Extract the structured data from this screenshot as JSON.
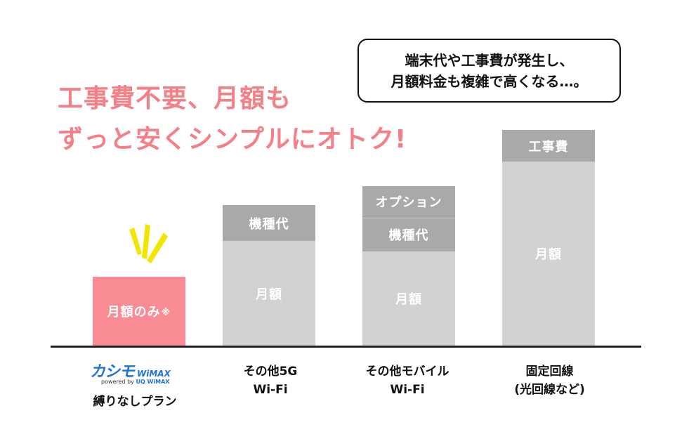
{
  "headline": {
    "line1": "工事費不要、月額も",
    "line2": "ずっと安くシンプルにオトク!"
  },
  "callout": {
    "line1": "端末代や工事費が発生し、",
    "line2": "月額料金も複雑で高くなる…。"
  },
  "colors": {
    "headline": "#f47f86",
    "highlight_bar": "#f88b93",
    "monthly_segment": "#d2d2d2",
    "extra_segment": "#a9a9a9",
    "burst": "#f2e600"
  },
  "chart_data": {
    "type": "bar",
    "stacked": true,
    "categories": [
      "カシモ WiMAX 縛りなしプラン",
      "その他5G Wi-Fi",
      "その他モバイル Wi-Fi",
      "固定回線 (光回線など)"
    ],
    "bars": [
      {
        "segments": [
          {
            "label": "月額のみ",
            "note": "※",
            "fraction": 0.32,
            "color": "#f88b93"
          }
        ]
      },
      {
        "segments": [
          {
            "label": "機種代",
            "fraction": 0.165,
            "color": "#a9a9a9"
          },
          {
            "label": "月額",
            "fraction": 0.485,
            "color": "#d2d2d2"
          }
        ]
      },
      {
        "segments": [
          {
            "label": "オプション",
            "fraction": 0.145,
            "color": "#a9a9a9"
          },
          {
            "label": "機種代",
            "fraction": 0.155,
            "color": "#a9a9a9"
          },
          {
            "label": "月額",
            "fraction": 0.44,
            "color": "#d2d2d2"
          }
        ]
      },
      {
        "segments": [
          {
            "label": "工事費",
            "fraction": 0.145,
            "color": "#a9a9a9"
          },
          {
            "label": "月額",
            "fraction": 0.855,
            "color": "#d2d2d2"
          }
        ]
      }
    ],
    "axis_labels": {
      "x": "",
      "y": ""
    },
    "grid": false
  },
  "labels": {
    "cat1": {
      "logo_kana": "カシモ",
      "logo_brand": "WiMAX",
      "logo_powered": "powered by",
      "logo_uq": "UQ WiMAX",
      "line1": "縛りなしプラン"
    },
    "cat2": {
      "line1": "その他5G",
      "line2": "Wi-Fi"
    },
    "cat3": {
      "line1": "その他モバイル",
      "line2": "Wi-Fi"
    },
    "cat4": {
      "line1": "固定回線",
      "line2": "(光回線など)"
    }
  }
}
